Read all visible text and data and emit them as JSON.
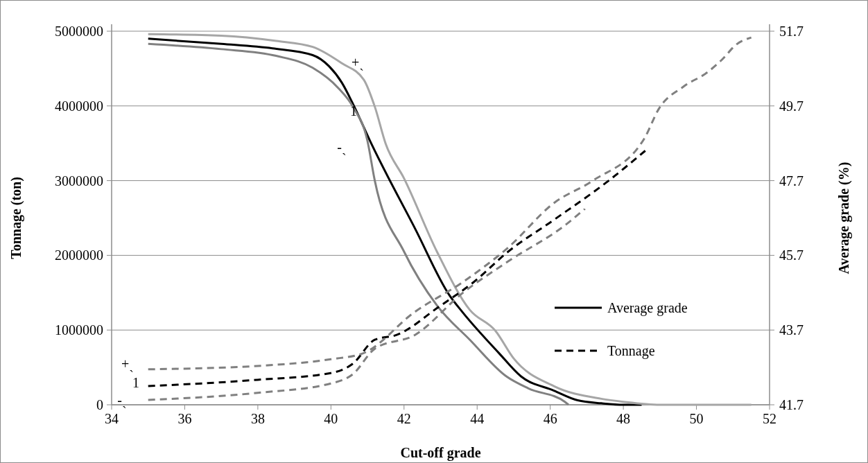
{
  "chart_data": {
    "type": "line",
    "xlabel": "Cut-off grade",
    "ylabel": "Tonnage (ton)",
    "y2label": "Average grade (%)",
    "xlim": [
      34,
      52
    ],
    "xticks": [
      34,
      36,
      38,
      40,
      42,
      44,
      46,
      48,
      50,
      52
    ],
    "ylim": [
      0,
      5000000
    ],
    "yticks": [
      0,
      1000000,
      2000000,
      3000000,
      4000000,
      5000000
    ],
    "y2lim": [
      41.7,
      51.7
    ],
    "y2ticks": [
      41.7,
      43.7,
      45.7,
      47.7,
      49.7,
      51.7
    ],
    "grid": "y",
    "legend": "right",
    "series": [
      {
        "name": "Average grade",
        "color": "#000000",
        "line_style": "solid",
        "x": [
          35,
          37,
          38.4,
          39.5,
          39.95,
          40.3,
          40.6,
          41.1,
          42.3,
          43.25,
          43.6,
          44.6,
          45.2,
          46.1,
          46.75,
          47.4,
          48,
          48.5
        ],
        "values": [
          4900000,
          4830000,
          4770000,
          4680000,
          4530000,
          4310000,
          4030000,
          3500000,
          2360000,
          1460000,
          1240000,
          690000,
          380000,
          190000,
          60000,
          20000,
          0,
          0
        ]
      },
      {
        "color": "#a6a6a6",
        "line_style": "solid",
        "x": [
          35,
          37,
          38.5,
          39.5,
          40.3,
          40.9,
          41.2,
          41.5,
          42,
          42.9,
          43.8,
          44.5,
          45,
          46.1,
          47.4,
          48,
          49,
          51.5
        ],
        "values": [
          4960000,
          4940000,
          4870000,
          4790000,
          4570000,
          4350000,
          3990000,
          3490000,
          3030000,
          2050000,
          1270000,
          990000,
          620000,
          250000,
          80000,
          40000,
          0,
          0
        ]
      },
      {
        "color": "#808080",
        "line_style": "solid",
        "x": [
          35,
          37,
          38.5,
          39.5,
          40.2,
          40.6,
          41,
          41.2,
          42,
          42.9,
          43.8,
          44.8,
          45.4,
          46.4,
          46.5
        ],
        "values": [
          4830000,
          4760000,
          4670000,
          4510000,
          4240000,
          3990000,
          3530000,
          3000000,
          2050000,
          1330000,
          870000,
          380000,
          220000,
          40000,
          0
        ]
      },
      {
        "name": "Tonnage",
        "color": "#000000",
        "line_style": "dashed",
        "axis": "y2",
        "x": [
          35,
          38,
          40,
          40.6,
          41.2,
          41.8,
          42.95,
          43.9,
          44.85,
          46.1,
          47.6,
          48.6
        ],
        "values": [
          42.2,
          42.37,
          42.55,
          42.8,
          43.44,
          43.57,
          44.32,
          44.98,
          45.8,
          46.65,
          47.7,
          48.5
        ]
      },
      {
        "color": "#808080",
        "line_style": "dashed",
        "axis": "y2",
        "x": [
          35,
          38,
          40,
          40.86,
          42.3,
          43.6,
          44.85,
          46.1,
          47.15,
          48.57,
          48.97,
          49.65,
          50.3,
          50.7,
          51.1,
          51.5
        ],
        "values": [
          42.65,
          42.74,
          42.92,
          43.07,
          44.19,
          44.98,
          45.91,
          47.1,
          47.69,
          48.82,
          49.62,
          50.22,
          50.6,
          50.94,
          51.35,
          51.53
        ]
      },
      {
        "color": "#808080",
        "line_style": "dashed",
        "axis": "y2",
        "x": [
          35,
          38,
          40,
          40.6,
          41.2,
          42.3,
          43.6,
          44.85,
          46.45,
          46.95
        ],
        "values": [
          41.83,
          42.02,
          42.27,
          42.52,
          43.2,
          43.57,
          44.69,
          45.54,
          46.54,
          46.95
        ]
      }
    ],
    "annotations": [
      "+ˎ",
      "1",
      "-ˎ",
      "+ˎ",
      "1",
      "-ˎ"
    ]
  }
}
